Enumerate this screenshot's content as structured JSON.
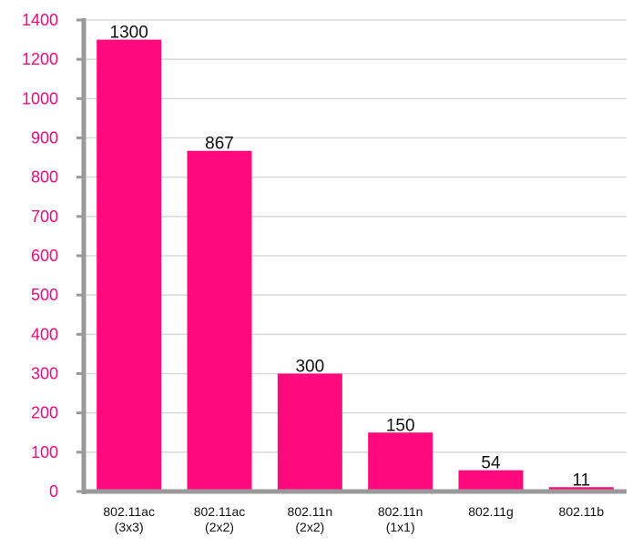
{
  "chart_data": {
    "type": "bar",
    "categories": [
      [
        "802.11ac",
        "(3x3)"
      ],
      [
        "802.11ac",
        "(2x2)"
      ],
      [
        "802.11n",
        "(2x2)"
      ],
      [
        "802.11n",
        "(1x1)"
      ],
      [
        "802.11g"
      ],
      [
        "802.11b"
      ]
    ],
    "values": [
      1300,
      867,
      300,
      150,
      54,
      11
    ],
    "data_labels": [
      "1300",
      "867",
      "300",
      "150",
      "54",
      "11"
    ],
    "y_tick_labels": [
      "0",
      "100",
      "200",
      "300",
      "400",
      "500",
      "600",
      "700",
      "800",
      "900",
      "1000",
      "1200",
      "1400"
    ],
    "title": "",
    "xlabel": "",
    "ylabel": "",
    "grid": true,
    "legend": "none",
    "colors": {
      "bar": "#ff0a7c",
      "tick_label": "#ec0d7c",
      "axis": "#999999",
      "grid": "#d8d8d8"
    }
  }
}
